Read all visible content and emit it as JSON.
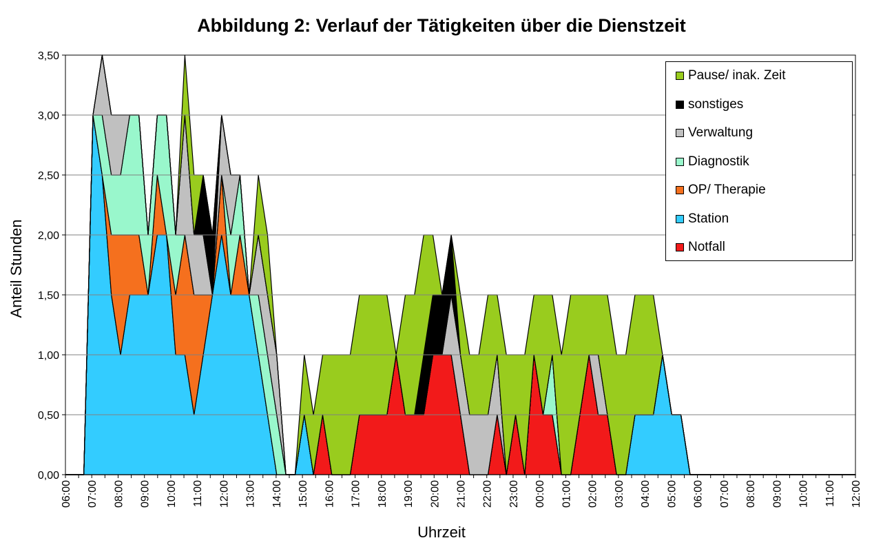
{
  "chart_data": {
    "type": "area",
    "stacked": true,
    "title": "Abbildung 2: Verlauf der Tätigkeiten über die Dienstzeit",
    "xlabel": "Uhrzeit",
    "ylabel": "Anteil Stunden",
    "ylim": [
      0,
      3.5
    ],
    "yticks": [
      "0,00",
      "0,50",
      "1,00",
      "1,50",
      "2,00",
      "2,50",
      "3,00",
      "3,50"
    ],
    "xticks": [
      "06:00",
      "07:00",
      "08:00",
      "09:00",
      "10:00",
      "11:00",
      "12:00",
      "13:00",
      "14:00",
      "15:00",
      "16:00",
      "17:00",
      "18:00",
      "19:00",
      "20:00",
      "21:00",
      "22:00",
      "23:00",
      "00:00",
      "01:00",
      "02:00",
      "03:00",
      "04:00",
      "05:00",
      "06:00",
      "07:00",
      "08:00",
      "09:00",
      "10:00",
      "11:00",
      "12:00"
    ],
    "grid": true,
    "legend_position": "top-right",
    "series": [
      {
        "name": "Notfall",
        "color": "#f21a1a",
        "values": [
          0,
          0,
          0,
          0,
          0,
          0,
          0,
          0,
          0,
          0,
          0,
          0,
          0,
          0,
          0,
          0,
          0,
          0,
          0,
          0,
          0,
          0,
          0,
          0,
          0,
          0,
          0,
          0,
          0.5,
          0,
          0,
          0,
          0.5,
          0.5,
          0.5,
          0.5,
          1,
          0.5,
          0.5,
          0.5,
          1,
          1,
          1,
          0.5,
          0,
          0,
          0,
          0.5,
          0,
          0.5,
          0,
          1,
          0.5,
          0.5,
          0,
          0,
          0.5,
          1,
          0.5,
          0.5,
          0,
          0,
          0,
          0,
          0,
          0,
          0,
          0,
          0,
          0,
          0,
          0,
          0,
          0,
          0,
          0,
          0,
          0,
          0,
          0,
          0,
          0,
          0,
          0,
          0,
          0,
          0
        ]
      },
      {
        "name": "Station",
        "color": "#33ccff",
        "values": [
          0,
          0,
          0,
          3,
          2.5,
          1.5,
          1,
          1.5,
          1.5,
          1.5,
          2,
          2,
          1,
          1,
          0.5,
          1,
          1.5,
          2,
          1.5,
          1.5,
          1.5,
          1,
          0.5,
          0,
          0,
          0,
          0.5,
          0,
          0,
          0,
          0,
          0,
          0,
          0,
          0,
          0,
          0,
          0,
          0,
          0,
          0,
          0,
          0,
          0,
          0,
          0,
          0,
          0,
          0,
          0,
          0,
          0,
          0,
          0,
          0,
          0,
          0,
          0,
          0,
          0,
          0,
          0,
          0.5,
          0.5,
          0.5,
          1,
          0.5,
          0.5,
          0,
          0,
          0,
          0,
          0,
          0,
          0,
          0,
          0,
          0,
          0,
          0,
          0,
          0,
          0,
          0,
          0,
          0,
          0
        ]
      },
      {
        "name": "OP/ Therapie",
        "color": "#f5701e",
        "values": [
          0,
          0,
          0,
          0,
          0,
          0.5,
          1,
          0.5,
          0.5,
          0,
          0.5,
          0,
          0.5,
          1,
          1,
          0.5,
          0,
          0.5,
          0,
          0.5,
          0,
          0,
          0,
          0,
          0,
          0,
          0,
          0,
          0,
          0,
          0,
          0,
          0,
          0,
          0,
          0,
          0,
          0,
          0,
          0,
          0,
          0,
          0,
          0,
          0,
          0,
          0,
          0,
          0,
          0,
          0,
          0,
          0,
          0,
          0,
          0,
          0,
          0,
          0,
          0,
          0,
          0,
          0,
          0,
          0,
          0,
          0,
          0,
          0,
          0,
          0,
          0,
          0,
          0,
          0,
          0,
          0,
          0,
          0,
          0,
          0,
          0,
          0,
          0,
          0,
          0,
          0
        ]
      },
      {
        "name": "Diagnostik",
        "color": "#99f7cc",
        "values": [
          0,
          0,
          0,
          0,
          0.5,
          0.5,
          0.5,
          1,
          1,
          0.5,
          0.5,
          1,
          0.5,
          0,
          0,
          0,
          0,
          0,
          0.5,
          0.5,
          0,
          0.5,
          0.5,
          0.5,
          0,
          0,
          0,
          0,
          0,
          0,
          0,
          0,
          0,
          0,
          0,
          0,
          0,
          0,
          0,
          0,
          0,
          0,
          0,
          0,
          0,
          0,
          0,
          0,
          0,
          0,
          0,
          0,
          0,
          0.5,
          0,
          0,
          0,
          0,
          0,
          0,
          0,
          0,
          0,
          0,
          0,
          0,
          0,
          0,
          0,
          0,
          0,
          0,
          0,
          0,
          0,
          0,
          0,
          0,
          0,
          0,
          0,
          0,
          0,
          0,
          0,
          0,
          0
        ]
      },
      {
        "name": "Verwaltung",
        "color": "#c0c0c0",
        "values": [
          0,
          0,
          0,
          0,
          0.5,
          0.5,
          0.5,
          0,
          0,
          0,
          0,
          0,
          0,
          1,
          0.5,
          0.5,
          0,
          0.5,
          0.5,
          0,
          0,
          0.5,
          0.5,
          0.5,
          0,
          0,
          0,
          0,
          0,
          0,
          0,
          0,
          0,
          0,
          0,
          0,
          0,
          0,
          0,
          0,
          0,
          0,
          0.5,
          0.5,
          0.5,
          0.5,
          0.5,
          0.5,
          0,
          0,
          0,
          0,
          0,
          0,
          0,
          0,
          0,
          0,
          0.5,
          0,
          0,
          0,
          0,
          0,
          0,
          0,
          0,
          0,
          0,
          0,
          0,
          0,
          0,
          0,
          0,
          0,
          0,
          0,
          0,
          0,
          0,
          0,
          0,
          0,
          0,
          0,
          0
        ]
      },
      {
        "name": "sonstiges",
        "color": "#000000",
        "values": [
          0,
          0,
          0,
          0,
          0,
          0,
          0,
          0,
          0,
          0,
          0,
          0,
          0,
          0,
          0,
          0.5,
          0.5,
          0,
          0,
          0,
          0,
          0,
          0,
          0,
          0,
          0,
          0,
          0,
          0,
          0,
          0,
          0,
          0,
          0,
          0,
          0,
          0,
          0,
          0,
          0.5,
          0.5,
          0.5,
          0.5,
          0,
          0,
          0,
          0,
          0,
          0,
          0,
          0,
          0,
          0,
          0,
          0,
          0,
          0,
          0,
          0,
          0,
          0,
          0,
          0,
          0,
          0,
          0,
          0,
          0,
          0,
          0,
          0,
          0,
          0,
          0,
          0,
          0,
          0,
          0,
          0,
          0,
          0,
          0,
          0,
          0,
          0,
          0,
          0
        ]
      },
      {
        "name": "Pause/ inak. Zeit",
        "color": "#99cc1e",
        "values": [
          0,
          0,
          0,
          0,
          0,
          0,
          0,
          0,
          0,
          0,
          0,
          0,
          0,
          0.5,
          0.5,
          0,
          0,
          0,
          0,
          0,
          0,
          0.5,
          0.5,
          0,
          0,
          0,
          0.5,
          0.5,
          0.5,
          1,
          1,
          1,
          1,
          1,
          1,
          1,
          0,
          1,
          1,
          1,
          0.5,
          0,
          0,
          0.5,
          0.5,
          0.5,
          1,
          0.5,
          1,
          0.5,
          1,
          0.5,
          1,
          0.5,
          1,
          1.5,
          1,
          0.5,
          0.5,
          1,
          1,
          1,
          1,
          1,
          1,
          0,
          0,
          0,
          0,
          0,
          0,
          0,
          0,
          0,
          0,
          0,
          0,
          0,
          0,
          0,
          0,
          0,
          0,
          0,
          0,
          0,
          0
        ]
      }
    ]
  }
}
